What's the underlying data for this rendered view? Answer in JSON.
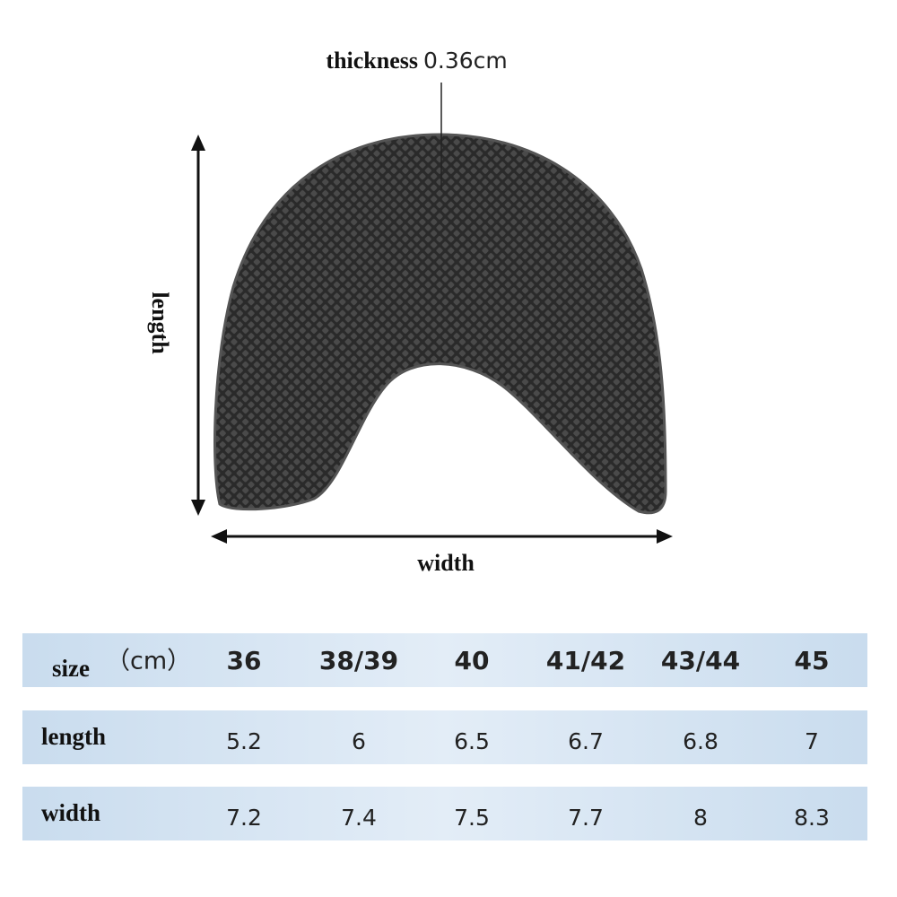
{
  "diagram": {
    "thickness_label": "thickness",
    "thickness_value": "0.36cm",
    "length_label": "length",
    "width_label": "width"
  },
  "table": {
    "rows": [
      {
        "label": "size",
        "unit": "（cm）",
        "cells": [
          "36",
          "38/39",
          "40",
          "41/42",
          "43/44",
          "45"
        ]
      },
      {
        "label": "length",
        "cells": [
          5.2,
          6,
          6.5,
          6.7,
          6.8,
          7
        ]
      },
      {
        "label": "width",
        "cells": [
          7.2,
          7.4,
          7.5,
          7.7,
          8,
          8.3
        ]
      }
    ]
  }
}
